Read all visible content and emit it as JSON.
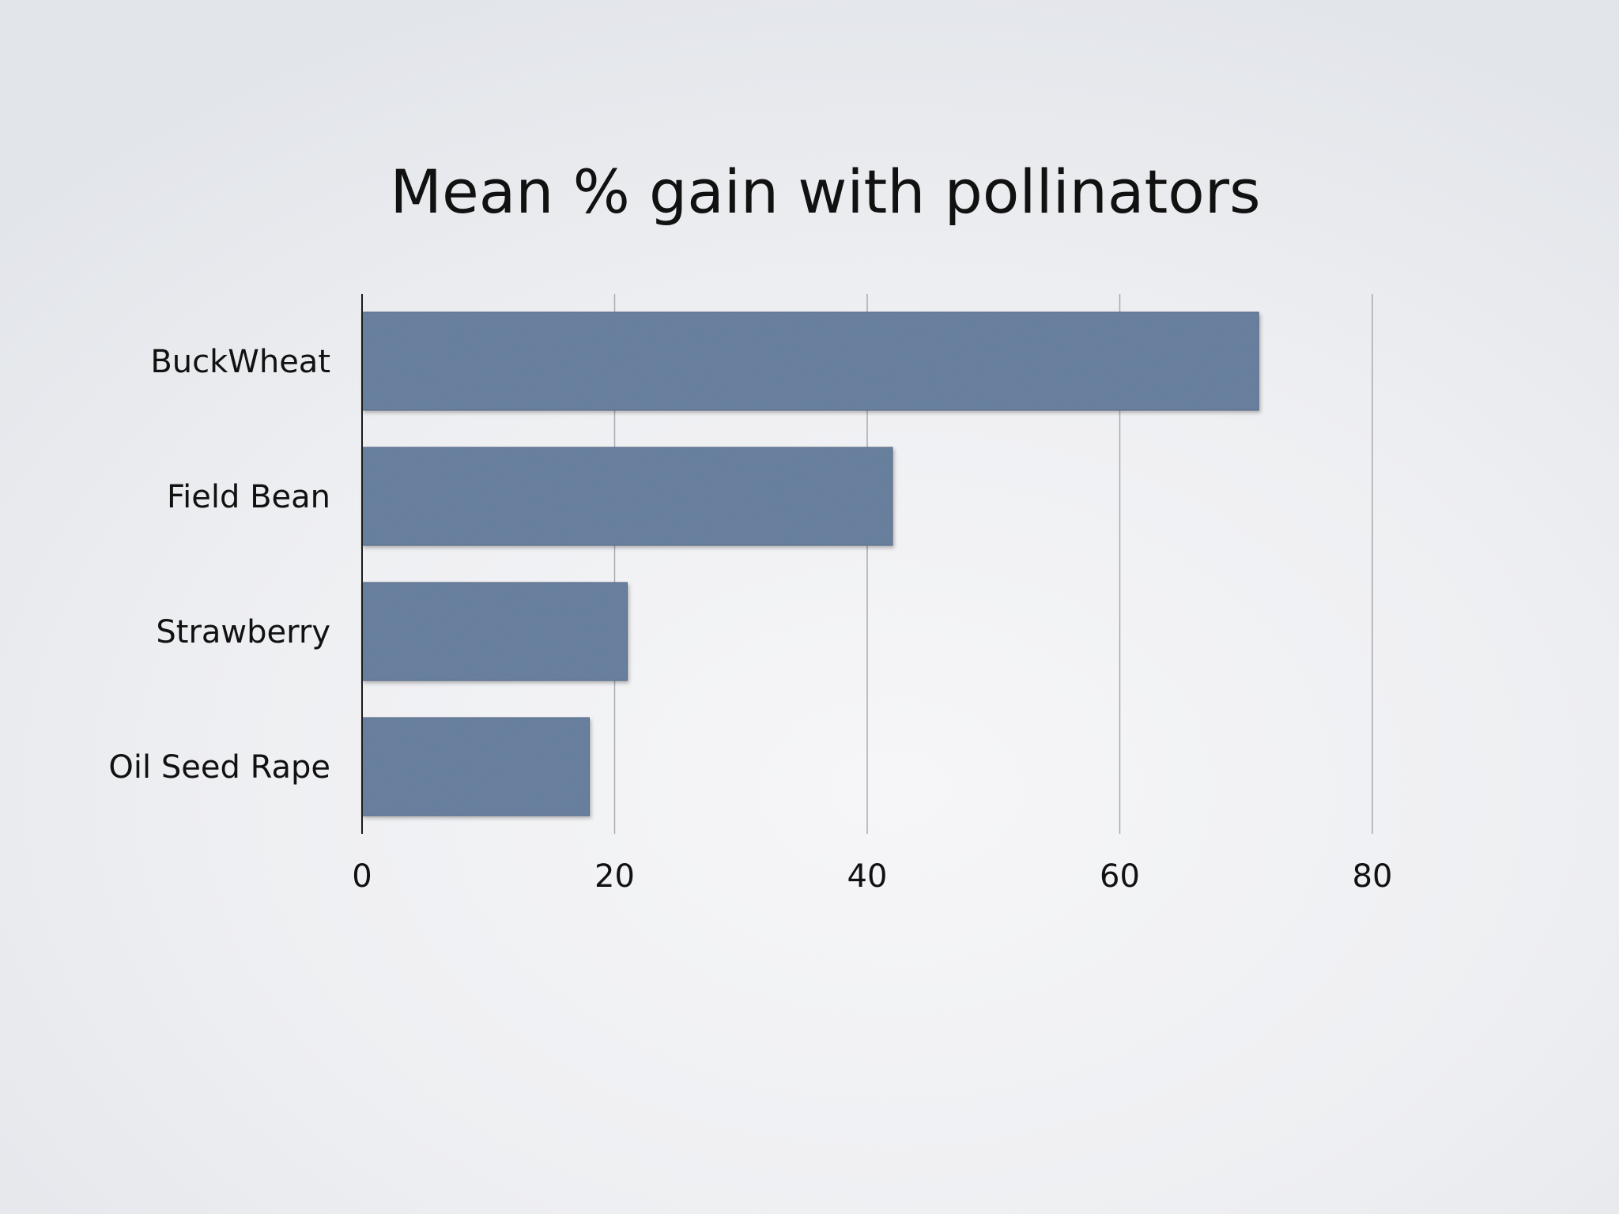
{
  "chart_data": {
    "type": "bar",
    "orientation": "horizontal",
    "title": "Mean % gain with pollinators",
    "categories": [
      "BuckWheat",
      "Field Bean",
      "Strawberry",
      "Oil Seed Rape"
    ],
    "values": [
      71,
      42,
      21,
      18
    ],
    "xlim": [
      0,
      80
    ],
    "xticks": [
      0,
      20,
      40,
      60,
      80
    ],
    "xlabel": "",
    "ylabel": "",
    "grid": true,
    "legend": "none",
    "bar_color": "#627a99"
  }
}
